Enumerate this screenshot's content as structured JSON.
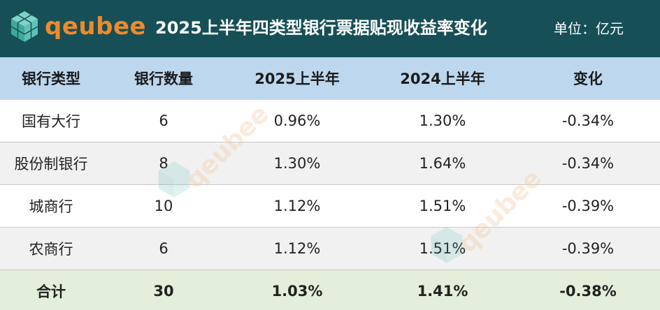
{
  "header": {
    "logo_text": "qeubee",
    "title": "2025上半年四类型银行票据贴现收益率变化",
    "unit": "单位：亿元"
  },
  "table": {
    "columns": [
      "银行类型",
      "银行数量",
      "2025上半年",
      "2024上半年",
      "变化"
    ],
    "rows": [
      [
        "国有大行",
        "6",
        "0.96%",
        "1.30%",
        "-0.34%"
      ],
      [
        "股份制银行",
        "8",
        "1.30%",
        "1.64%",
        "-0.34%"
      ],
      [
        "城商行",
        "10",
        "1.12%",
        "1.51%",
        "-0.39%"
      ],
      [
        "农商行",
        "6",
        "1.12%",
        "1.51%",
        "-0.39%"
      ]
    ],
    "total": [
      "合计",
      "30",
      "1.03%",
      "1.41%",
      "-0.38%"
    ]
  },
  "watermark": {
    "text": "qeubee"
  },
  "colors": {
    "header_bg": "#174f57",
    "logo_orange": "#ee8a2c",
    "logo_teal": "#5fc2b5",
    "column_header_bg": "#bdd7ee",
    "alt_row_bg": "#f1f1f1",
    "total_row_bg": "#e3efda"
  }
}
